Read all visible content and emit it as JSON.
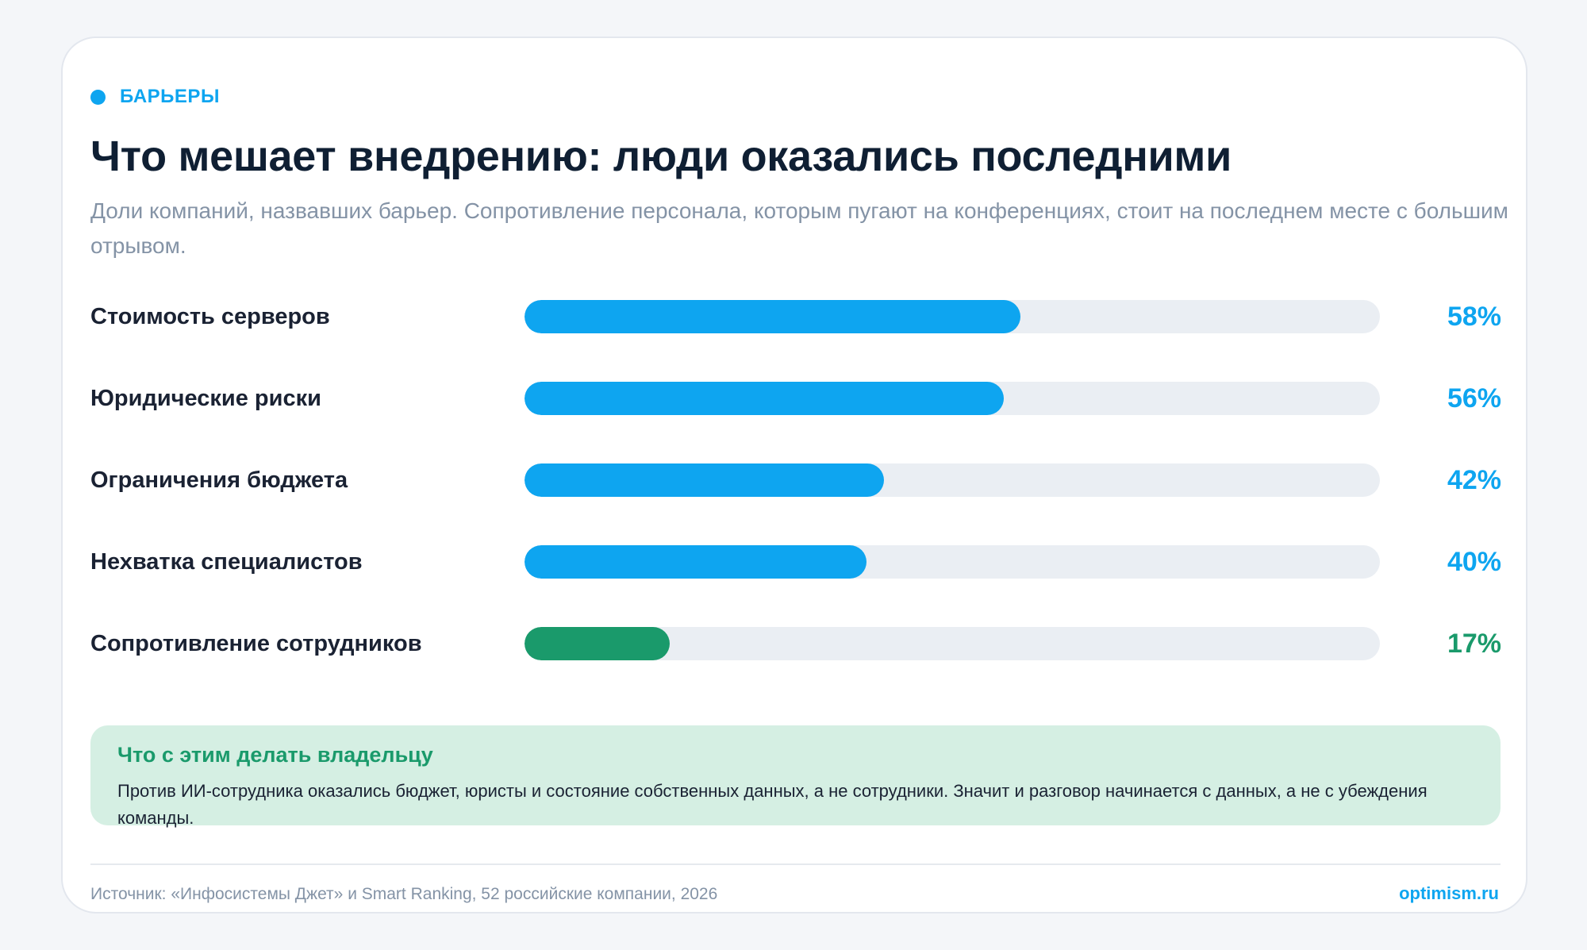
{
  "tag": "БАРЬЕРЫ",
  "title": "Что мешает внедрению: люди оказались последними",
  "subtitle": "Доли компаний, назвавших барьер. Сопротивление персонала, которым пугают на конференциях, стоит на последнем месте с большим отрывом.",
  "colors": {
    "accent": "#0ea5f0",
    "highlight": "#1a9a6b",
    "track": "#eaeef3"
  },
  "chart_data": {
    "type": "bar",
    "orientation": "horizontal",
    "categories": [
      "Стоимость серверов",
      "Юридические риски",
      "Ограничения бюджета",
      "Нехватка специалистов",
      "Сопротивление сотрудников"
    ],
    "values": [
      58,
      56,
      42,
      40,
      17
    ],
    "value_labels": [
      "58%",
      "56%",
      "42%",
      "40%",
      "17%"
    ],
    "unit": "%",
    "xlim": [
      0,
      100
    ],
    "highlighted_category": "Сопротивление сотрудников",
    "grid": false
  },
  "note": {
    "title": "Что с этим делать владельцу",
    "text": "Против ИИ-сотрудника оказались бюджет, юристы и состояние собственных данных, а не сотрудники. Значит и разговор начинается с данных, а не с убеждения команды."
  },
  "footer": {
    "source": "Источник: «Инфосистемы Джет» и Smart Ranking, 52 российские компании, 2026",
    "brand": "optimism.ru"
  }
}
